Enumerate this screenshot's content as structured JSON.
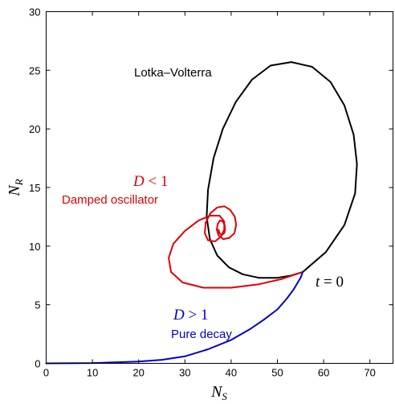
{
  "chart_data": {
    "type": "line",
    "xlabel": {
      "base": "N",
      "sub": "S"
    },
    "ylabel": {
      "base": "N",
      "sub": "R"
    },
    "xlim": [
      0,
      75
    ],
    "ylim": [
      0,
      30
    ],
    "xticks": [
      0,
      10,
      20,
      30,
      40,
      50,
      60,
      70
    ],
    "yticks": [
      0,
      5,
      10,
      15,
      20,
      25,
      30
    ],
    "grid": false,
    "series": [
      {
        "id": "lotka-volterra",
        "color": "#000000",
        "x": [
          55.5,
          60.5,
          64.5,
          66.8,
          67.2,
          66.5,
          64.5,
          61.5,
          57.5,
          53,
          48.5,
          44.5,
          41,
          38.2,
          36.2,
          35,
          34.7,
          35.4,
          37,
          39.5,
          42.5,
          46,
          50,
          53,
          55.5
        ],
        "y": [
          7.8,
          9.5,
          11.8,
          14.5,
          17,
          19.5,
          22,
          24,
          25.3,
          25.7,
          25.4,
          24.2,
          22.3,
          20,
          17.5,
          14.8,
          12.5,
          10.6,
          9.2,
          8.2,
          7.6,
          7.3,
          7.3,
          7.5,
          7.8
        ]
      },
      {
        "id": "damped-oscillator",
        "color": "#e00000",
        "x": [
          55.5,
          51,
          46,
          40,
          34,
          29.5,
          27,
          26.5,
          27.5,
          30,
          33,
          35.5,
          37.5,
          38.5,
          38.5,
          37.8,
          36.5,
          35,
          34.3,
          34.5,
          35.5,
          37,
          38.5,
          39.8,
          40.8,
          41.1,
          40.7,
          39.6,
          38.3,
          37.3,
          36.9,
          37.1,
          37.6,
          38.2,
          38.6,
          38.7,
          38.5,
          38.1,
          37.7,
          37.4,
          37.3
        ],
        "y": [
          7.8,
          7.2,
          6.75,
          6.45,
          6.45,
          6.9,
          7.8,
          9.0,
          10.2,
          11.3,
          12.2,
          12.6,
          12.6,
          12.1,
          11.4,
          10.8,
          10.4,
          10.5,
          11.1,
          12.0,
          12.8,
          13.3,
          13.4,
          13.1,
          12.5,
          11.8,
          11.1,
          10.7,
          10.6,
          10.9,
          11.4,
          11.9,
          12.2,
          12.1,
          11.8,
          11.4,
          11.1,
          11.0,
          11.0,
          11.2,
          11.4
        ]
      },
      {
        "id": "pure-decay",
        "color": "#0000cc",
        "x": [
          0,
          10,
          20,
          25,
          30,
          35,
          40,
          44,
          47,
          50,
          52,
          53.5,
          55,
          55.5
        ],
        "y": [
          0,
          0.03,
          0.15,
          0.3,
          0.6,
          1.2,
          2.0,
          2.9,
          3.7,
          4.6,
          5.5,
          6.3,
          7.3,
          7.8
        ]
      }
    ],
    "annotations": {
      "lv_label": "Lotka–Volterra",
      "d_lt_1": {
        "lhs": "D",
        "op": " < ",
        "rhs": "1"
      },
      "damped_label": "Damped oscillator",
      "d_gt_1": {
        "lhs": "D",
        "op": " > ",
        "rhs": "1"
      },
      "decay_label": "Pure decay",
      "t0": {
        "lhs": "t",
        "op": " = ",
        "rhs": "0"
      }
    },
    "colors": {
      "lotka_volterra": "#000000",
      "damped": "#e00000",
      "decay": "#0000cc"
    }
  }
}
